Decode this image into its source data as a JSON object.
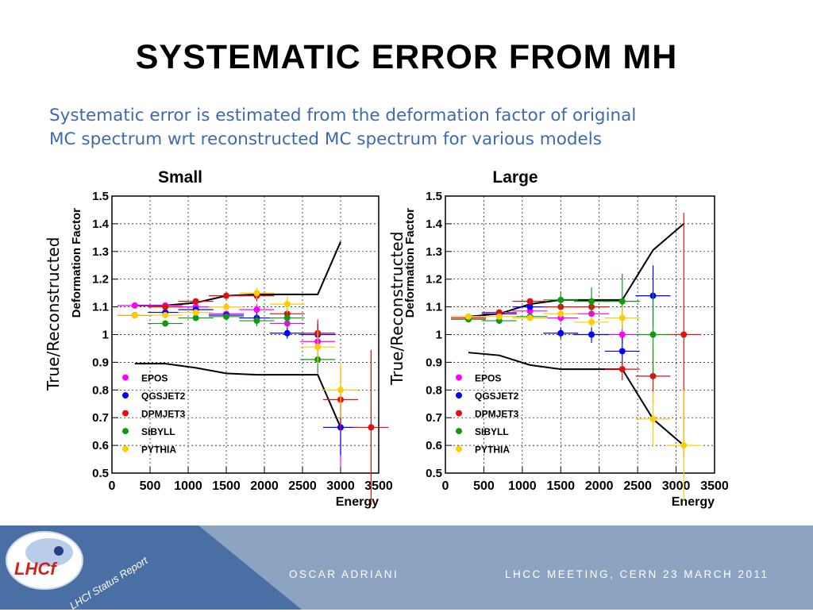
{
  "slide": {
    "title": "SYSTEMATIC ERROR FROM MH",
    "subtitle_line1": "Systematic error is estimated from the deformation factor of original",
    "subtitle_line2": "MC spectrum wrt reconstructed MC spectrum for various models",
    "side_label_left": "True/Reconstructed",
    "side_label_right": "True/Reconstructed"
  },
  "footer": {
    "presenter": "OSCAR ADRIANI",
    "meeting": "LHCC MEETING, CERN 23 MARCH 2011",
    "report_label": "LHCf Status Report",
    "logo_text": "LHCf",
    "colors": {
      "band_dark": "#4a6fa5",
      "band_light": "#8ca3c2"
    }
  },
  "chart_data": [
    {
      "type": "scatter",
      "title": "Small",
      "xlabel": "Energy",
      "ylabel": "Deformation Factor",
      "xlim": [
        0,
        3500
      ],
      "ylim": [
        0.5,
        1.5
      ],
      "xticks": [
        0,
        500,
        1000,
        1500,
        2000,
        2500,
        3000,
        3500
      ],
      "yticks": [
        0.5,
        0.6,
        0.7,
        0.8,
        0.9,
        1,
        1.1,
        1.2,
        1.3,
        1.4,
        1.5
      ],
      "grid": true,
      "legend": "bottom-left",
      "bounds": {
        "upper": {
          "x": [
            300,
            700,
            1100,
            1500,
            1900,
            2300,
            2700,
            3000
          ],
          "y": [
            1.105,
            1.105,
            1.115,
            1.14,
            1.145,
            1.145,
            1.145,
            1.335
          ]
        },
        "lower": {
          "x": [
            300,
            700,
            1100,
            1500,
            1900,
            2300,
            2700,
            3000
          ],
          "y": [
            0.895,
            0.895,
            0.88,
            0.86,
            0.855,
            0.855,
            0.855,
            0.665
          ]
        }
      },
      "series": [
        {
          "name": "EPOS",
          "color": "#ff00ff",
          "x": [
            300,
            700,
            1100,
            1500,
            1900,
            2300,
            2700,
            3000
          ],
          "y": [
            1.105,
            1.105,
            1.1,
            1.075,
            1.09,
            1.04,
            0.975,
            0.665
          ],
          "yerr": [
            0.005,
            0.005,
            0.01,
            0.01,
            0.02,
            0.03,
            0.06,
            0.14
          ]
        },
        {
          "name": "QGSJET2",
          "color": "#0000ff",
          "x": [
            300,
            700,
            1100,
            1500,
            1900,
            2300,
            2700,
            3000
          ],
          "y": [
            1.07,
            1.08,
            1.09,
            1.07,
            1.06,
            1.005,
            1.0,
            0.665
          ],
          "yerr": [
            0.005,
            0.005,
            0.01,
            0.01,
            0.02,
            0.02,
            0.04,
            0.1
          ]
        },
        {
          "name": "DPMJET3",
          "color": "#dd1111",
          "x": [
            300,
            700,
            1100,
            1500,
            1900,
            2300,
            2700,
            3000,
            3400
          ],
          "y": [
            1.07,
            1.1,
            1.12,
            1.14,
            1.14,
            1.075,
            1.005,
            0.765,
            0.665
          ],
          "yerr": [
            0.005,
            0.005,
            0.01,
            0.01,
            0.02,
            0.02,
            0.05,
            0.12,
            0.28
          ]
        },
        {
          "name": "SIBYLL",
          "color": "#119911",
          "x": [
            300,
            700,
            1100,
            1500,
            1900,
            2300,
            2700
          ],
          "y": [
            1.07,
            1.04,
            1.06,
            1.065,
            1.05,
            1.06,
            0.91
          ],
          "yerr": [
            0.005,
            0.01,
            0.01,
            0.01,
            0.02,
            0.03,
            0.05
          ]
        },
        {
          "name": "PYTHIA",
          "color": "#ffcc00",
          "x": [
            300,
            700,
            1100,
            1500,
            1900,
            2300,
            2700,
            3000
          ],
          "y": [
            1.07,
            1.07,
            1.08,
            1.1,
            1.15,
            1.11,
            0.955,
            0.8
          ],
          "yerr": [
            0.005,
            0.005,
            0.01,
            0.01,
            0.02,
            0.03,
            0.06,
            0.1
          ]
        }
      ]
    },
    {
      "type": "scatter",
      "title": "Large",
      "xlabel": "Energy",
      "ylabel": "Deformation Factor",
      "xlim": [
        0,
        3500
      ],
      "ylim": [
        0.5,
        1.5
      ],
      "xticks": [
        0,
        500,
        1000,
        1500,
        2000,
        2500,
        3000,
        3500
      ],
      "yticks": [
        0.5,
        0.6,
        0.7,
        0.8,
        0.9,
        1,
        1.1,
        1.2,
        1.3,
        1.4,
        1.5
      ],
      "grid": true,
      "legend": "bottom-left",
      "bounds": {
        "upper": {
          "x": [
            300,
            700,
            1100,
            1500,
            1900,
            2300,
            2700,
            3100
          ],
          "y": [
            1.065,
            1.075,
            1.11,
            1.125,
            1.125,
            1.125,
            1.305,
            1.4
          ]
        },
        "lower": {
          "x": [
            300,
            700,
            1100,
            1500,
            1900,
            2300,
            2700,
            3100
          ],
          "y": [
            0.935,
            0.925,
            0.89,
            0.875,
            0.875,
            0.875,
            0.695,
            0.6
          ]
        }
      },
      "series": [
        {
          "name": "EPOS",
          "color": "#ff00ff",
          "x": [
            300,
            700,
            1100,
            1500,
            1900,
            2300
          ],
          "y": [
            1.065,
            1.075,
            1.085,
            1.06,
            1.075,
            1.0
          ],
          "yerr": [
            0.005,
            0.005,
            0.01,
            0.015,
            0.02,
            0.03
          ]
        },
        {
          "name": "QGSJET2",
          "color": "#0000ff",
          "x": [
            300,
            700,
            1100,
            1500,
            1900,
            2300,
            2700
          ],
          "y": [
            1.06,
            1.075,
            1.1,
            1.005,
            1.0,
            0.94,
            1.14
          ],
          "yerr": [
            0.005,
            0.005,
            0.01,
            0.02,
            0.03,
            0.05,
            0.11
          ]
        },
        {
          "name": "DPMJET3",
          "color": "#dd1111",
          "x": [
            300,
            700,
            1100,
            1500,
            1900,
            2300,
            2700,
            3100
          ],
          "y": [
            1.06,
            1.08,
            1.12,
            1.1,
            1.1,
            0.875,
            0.85,
            1.0
          ],
          "yerr": [
            0.005,
            0.005,
            0.01,
            0.02,
            0.03,
            0.04,
            0.1,
            0.44
          ]
        },
        {
          "name": "SIBYLL",
          "color": "#119911",
          "x": [
            300,
            700,
            1100,
            1500,
            1900,
            2300,
            2700
          ],
          "y": [
            1.055,
            1.05,
            1.065,
            1.125,
            1.12,
            1.12,
            1.0
          ],
          "yerr": [
            0.005,
            0.005,
            0.01,
            0.03,
            0.05,
            0.1,
            0.15
          ]
        },
        {
          "name": "PYTHIA",
          "color": "#ffcc00",
          "x": [
            300,
            700,
            1100,
            1500,
            1900,
            2300,
            2700,
            3100
          ],
          "y": [
            1.065,
            1.065,
            1.06,
            1.075,
            1.045,
            1.06,
            0.695,
            0.6
          ],
          "yerr": [
            0.005,
            0.005,
            0.01,
            0.015,
            0.02,
            0.04,
            0.1,
            0.2
          ]
        }
      ]
    }
  ]
}
